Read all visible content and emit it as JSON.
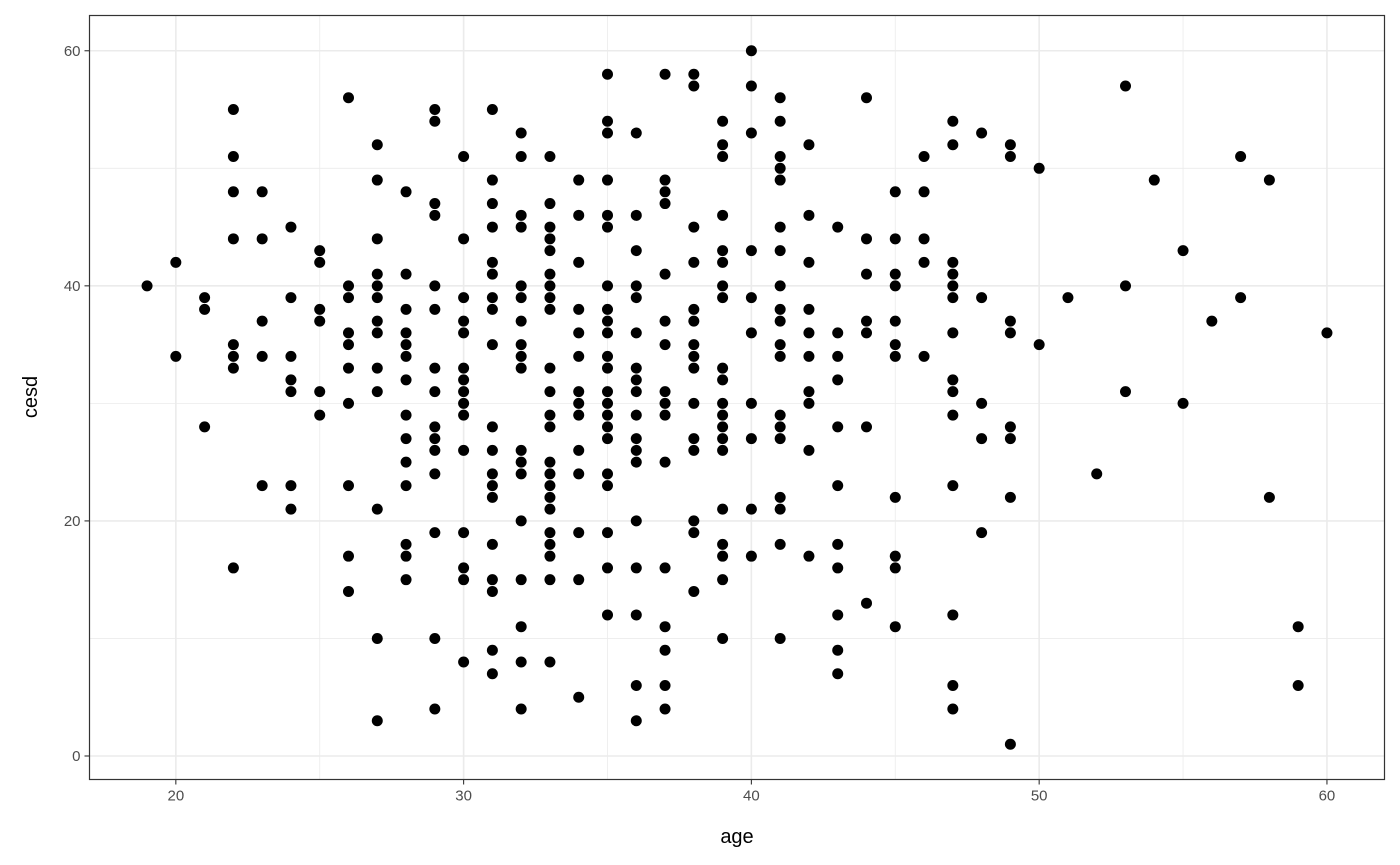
{
  "chart_data": {
    "type": "scatter",
    "title": "",
    "xlabel": "age",
    "ylabel": "cesd",
    "xlim": [
      17,
      62
    ],
    "ylim": [
      -2,
      63
    ],
    "x_ticks": [
      "20",
      "30",
      "40",
      "50",
      "60"
    ],
    "y_ticks": [
      "0",
      "20",
      "40",
      "60"
    ],
    "grid": true,
    "theme": "bw",
    "point_color": "#000000",
    "points_by_age": [
      {
        "x": 19,
        "y": [
          40
        ]
      },
      {
        "x": 20,
        "y": [
          42,
          34
        ]
      },
      {
        "x": 21,
        "y": [
          39,
          38,
          28
        ]
      },
      {
        "x": 22,
        "y": [
          55,
          51,
          48,
          44,
          35,
          34,
          33,
          16
        ]
      },
      {
        "x": 23,
        "y": [
          48,
          44,
          37,
          34,
          23
        ]
      },
      {
        "x": 24,
        "y": [
          45,
          39,
          34,
          32,
          31,
          23,
          21
        ]
      },
      {
        "x": 25,
        "y": [
          43,
          42,
          38,
          37,
          31,
          29
        ]
      },
      {
        "x": 26,
        "y": [
          56,
          40,
          39,
          36,
          35,
          33,
          30,
          23,
          17,
          14
        ]
      },
      {
        "x": 27,
        "y": [
          52,
          49,
          44,
          41,
          40,
          39,
          37,
          36,
          33,
          31,
          21,
          10,
          3
        ]
      },
      {
        "x": 28,
        "y": [
          48,
          41,
          38,
          36,
          35,
          34,
          32,
          29,
          27,
          25,
          23,
          18,
          17,
          15
        ]
      },
      {
        "x": 29,
        "y": [
          55,
          54,
          47,
          46,
          40,
          38,
          33,
          31,
          28,
          27,
          26,
          24,
          19,
          10,
          4
        ]
      },
      {
        "x": 30,
        "y": [
          51,
          44,
          39,
          37,
          36,
          33,
          32,
          31,
          30,
          29,
          26,
          19,
          16,
          15,
          8
        ]
      },
      {
        "x": 31,
        "y": [
          55,
          49,
          47,
          45,
          42,
          41,
          39,
          38,
          35,
          28,
          26,
          24,
          23,
          22,
          18,
          15,
          14,
          9,
          7
        ]
      },
      {
        "x": 32,
        "y": [
          53,
          51,
          46,
          45,
          40,
          39,
          37,
          35,
          34,
          33,
          26,
          25,
          24,
          20,
          15,
          11,
          8,
          4
        ]
      },
      {
        "x": 33,
        "y": [
          51,
          47,
          45,
          44,
          43,
          41,
          40,
          39,
          38,
          33,
          31,
          29,
          28,
          25,
          24,
          23,
          22,
          21,
          19,
          18,
          17,
          15,
          8
        ]
      },
      {
        "x": 34,
        "y": [
          49,
          46,
          42,
          38,
          36,
          34,
          31,
          30,
          29,
          26,
          24,
          19,
          15,
          5
        ]
      },
      {
        "x": 35,
        "y": [
          58,
          54,
          53,
          49,
          46,
          45,
          40,
          38,
          37,
          36,
          34,
          33,
          31,
          30,
          29,
          28,
          27,
          24,
          23,
          19,
          16,
          12
        ]
      },
      {
        "x": 36,
        "y": [
          53,
          46,
          43,
          40,
          39,
          36,
          33,
          32,
          31,
          29,
          27,
          26,
          25,
          20,
          16,
          12,
          6,
          3
        ]
      },
      {
        "x": 37,
        "y": [
          58,
          49,
          48,
          47,
          41,
          37,
          35,
          31,
          30,
          29,
          25,
          16,
          11,
          9,
          6,
          4
        ]
      },
      {
        "x": 38,
        "y": [
          58,
          57,
          45,
          42,
          38,
          37,
          35,
          34,
          33,
          30,
          27,
          26,
          20,
          19,
          14
        ]
      },
      {
        "x": 39,
        "y": [
          54,
          52,
          51,
          46,
          43,
          42,
          40,
          39,
          33,
          32,
          30,
          29,
          28,
          27,
          26,
          21,
          18,
          17,
          15,
          10
        ]
      },
      {
        "x": 40,
        "y": [
          60,
          57,
          53,
          43,
          39,
          36,
          30,
          27,
          21,
          17
        ]
      },
      {
        "x": 41,
        "y": [
          56,
          54,
          51,
          50,
          49,
          45,
          43,
          40,
          38,
          37,
          35,
          34,
          29,
          28,
          27,
          22,
          21,
          18,
          10
        ]
      },
      {
        "x": 42,
        "y": [
          52,
          46,
          42,
          38,
          36,
          34,
          31,
          30,
          26,
          17
        ]
      },
      {
        "x": 43,
        "y": [
          45,
          36,
          34,
          32,
          28,
          23,
          18,
          16,
          12,
          9,
          7
        ]
      },
      {
        "x": 44,
        "y": [
          56,
          44,
          41,
          37,
          36,
          28,
          13
        ]
      },
      {
        "x": 45,
        "y": [
          48,
          44,
          41,
          40,
          37,
          35,
          34,
          22,
          17,
          16,
          11
        ]
      },
      {
        "x": 46,
        "y": [
          51,
          48,
          44,
          42,
          34
        ]
      },
      {
        "x": 47,
        "y": [
          54,
          52,
          42,
          41,
          40,
          39,
          36,
          32,
          31,
          29,
          23,
          12,
          6,
          4
        ]
      },
      {
        "x": 48,
        "y": [
          53,
          39,
          30,
          27,
          19
        ]
      },
      {
        "x": 49,
        "y": [
          52,
          51,
          37,
          36,
          28,
          27,
          22,
          1
        ]
      },
      {
        "x": 50,
        "y": [
          50,
          35
        ]
      },
      {
        "x": 51,
        "y": [
          39
        ]
      },
      {
        "x": 52,
        "y": [
          24
        ]
      },
      {
        "x": 53,
        "y": [
          57,
          40,
          31
        ]
      },
      {
        "x": 54,
        "y": [
          49
        ]
      },
      {
        "x": 55,
        "y": [
          43,
          30
        ]
      },
      {
        "x": 56,
        "y": [
          37
        ]
      },
      {
        "x": 57,
        "y": [
          51,
          39
        ]
      },
      {
        "x": 58,
        "y": [
          49,
          22
        ]
      },
      {
        "x": 59,
        "y": [
          11,
          6
        ]
      },
      {
        "x": 60,
        "y": [
          36
        ]
      }
    ]
  }
}
